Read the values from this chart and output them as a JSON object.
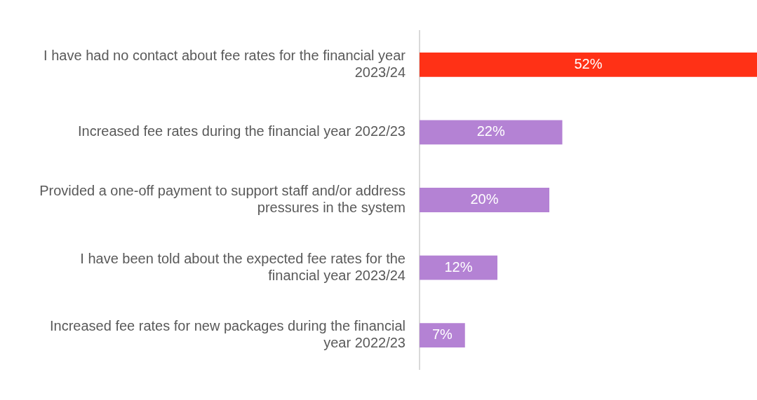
{
  "chart_data": {
    "type": "bar",
    "orientation": "horizontal",
    "grid": false,
    "legend": false,
    "tick_labels": "y",
    "categories": [
      "I have had no contact about fee rates for the financial year 2023/24",
      "Increased fee rates during the financial year 2022/23",
      "Provided a one-off payment to support staff and/or address pressures in the system",
      "I have been told about the expected fee rates for the financial year 2023/24",
      "Increased fee rates for new packages during the financial year 2022/23"
    ],
    "values": [
      52,
      22,
      20,
      12,
      7
    ],
    "value_labels": [
      "52%",
      "22%",
      "20%",
      "12%",
      "7%"
    ],
    "colors": [
      "#ff3116",
      "#b482d4",
      "#b482d4",
      "#b482d4",
      "#b482d4"
    ]
  }
}
